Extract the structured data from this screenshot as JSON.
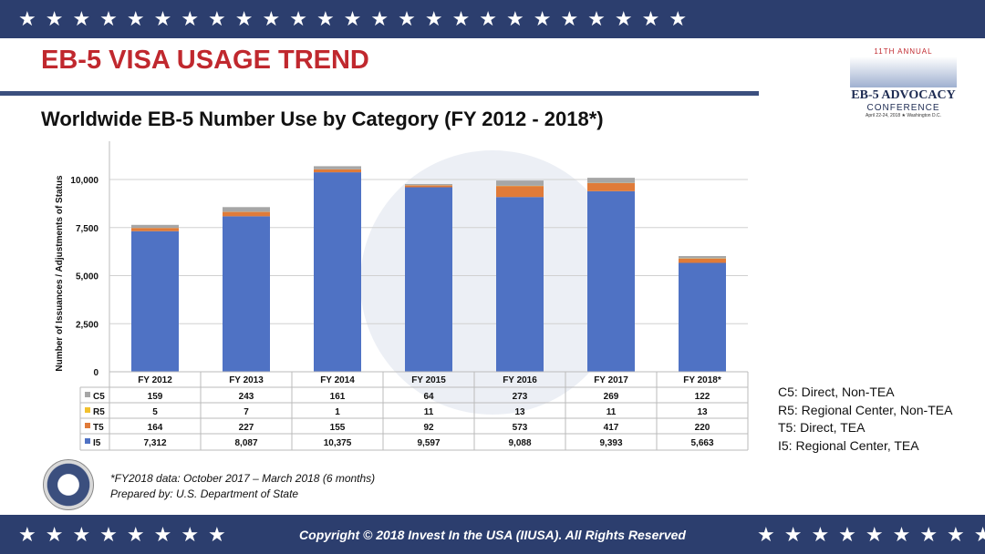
{
  "slide_title": "EB-5 VISA USAGE TREND",
  "logo": {
    "line1": "11TH ANNUAL",
    "line2": "EB-5 ADVOCACY",
    "line3": "CONFERENCE",
    "line4": "April 22-24, 2018 ★ Washington D.C."
  },
  "stars": "★★★★★★★★★★★★★★★★★★★★★★★★★",
  "stars_left": "★★★★★★★★",
  "stars_right": "★★★★★★★★★★",
  "chart_data": {
    "type": "bar",
    "stacked": true,
    "title": "Worldwide EB-5 Number Use by Category (FY 2012 - 2018*)",
    "ylabel": "Number of Issuances / Adjustments of Status",
    "ylim": [
      0,
      12500
    ],
    "yticks": [
      0,
      2500,
      5000,
      7500,
      10000
    ],
    "ytick_labels": [
      "0",
      "2,500",
      "5,000",
      "7,500",
      "10,000"
    ],
    "categories": [
      "FY 2012",
      "FY 2013",
      "FY 2014",
      "FY 2015",
      "FY 2016",
      "FY 2017",
      "FY 2018*"
    ],
    "series": [
      {
        "name": "C5",
        "color": "#a6a6a6",
        "values": [
          159,
          243,
          161,
          64,
          273,
          269,
          122
        ],
        "labels": [
          "159",
          "243",
          "161",
          "64",
          "273",
          "269",
          "122"
        ]
      },
      {
        "name": "R5",
        "color": "#f2c12e",
        "values": [
          5,
          7,
          1,
          11,
          13,
          11,
          13
        ],
        "labels": [
          "5",
          "7",
          "1",
          "11",
          "13",
          "11",
          "13"
        ]
      },
      {
        "name": "T5",
        "color": "#e07b39",
        "values": [
          164,
          227,
          155,
          92,
          573,
          417,
          220
        ],
        "labels": [
          "164",
          "227",
          "155",
          "92",
          "573",
          "417",
          "220"
        ]
      },
      {
        "name": "I5",
        "color": "#4f72c4",
        "values": [
          7312,
          8087,
          10375,
          9597,
          9088,
          9393,
          5663
        ],
        "labels": [
          "7,312",
          "8,087",
          "10,375",
          "9,597",
          "9,088",
          "9,393",
          "5,663"
        ]
      }
    ],
    "grid": true,
    "legend": "data-table"
  },
  "legend": [
    "C5: Direct, Non-TEA",
    "R5: Regional Center, Non-TEA",
    "T5: Direct, TEA",
    "I5: Regional Center, TEA"
  ],
  "note": {
    "line1": "*FY2018 data: October 2017 – March 2018 (6 months)",
    "line2": "Prepared by: U.S. Department of State"
  },
  "copyright": "Copyright © 2018 Invest In the USA (IIUSA). All Rights Reserved"
}
